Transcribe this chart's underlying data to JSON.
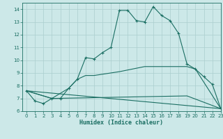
{
  "xlabel": "Humidex (Indice chaleur)",
  "background_color": "#cce8e8",
  "grid_color": "#aacece",
  "line_color": "#1a6e62",
  "xlim": [
    -0.5,
    23
  ],
  "ylim": [
    6,
    14.5
  ],
  "xticks": [
    0,
    1,
    2,
    3,
    4,
    5,
    6,
    7,
    8,
    9,
    10,
    11,
    12,
    13,
    14,
    15,
    16,
    17,
    18,
    19,
    20,
    21,
    22,
    23
  ],
  "yticks": [
    6,
    7,
    8,
    9,
    10,
    11,
    12,
    13,
    14
  ],
  "line1_x": [
    0,
    1,
    2,
    3,
    4,
    5,
    6,
    7,
    8,
    9,
    10,
    11,
    12,
    13,
    14,
    15,
    16,
    17,
    18,
    19,
    20,
    21,
    22,
    23
  ],
  "line1_y": [
    7.6,
    6.8,
    6.6,
    7.0,
    7.0,
    7.8,
    8.5,
    10.2,
    10.1,
    10.6,
    11.0,
    13.9,
    13.9,
    13.1,
    13.0,
    14.2,
    13.5,
    13.1,
    12.1,
    9.7,
    9.3,
    8.7,
    8.1,
    6.2
  ],
  "line2_x": [
    0,
    3,
    5,
    6,
    7,
    8,
    9,
    10,
    11,
    14,
    19,
    20,
    23
  ],
  "line2_y": [
    7.6,
    7.0,
    7.8,
    8.5,
    8.8,
    8.8,
    8.9,
    9.0,
    9.1,
    9.5,
    9.5,
    9.3,
    6.2
  ],
  "line3_x": [
    0,
    3,
    19,
    23
  ],
  "line3_y": [
    7.6,
    7.0,
    7.2,
    6.2
  ],
  "line4_x": [
    0,
    23
  ],
  "line4_y": [
    7.6,
    6.2
  ]
}
